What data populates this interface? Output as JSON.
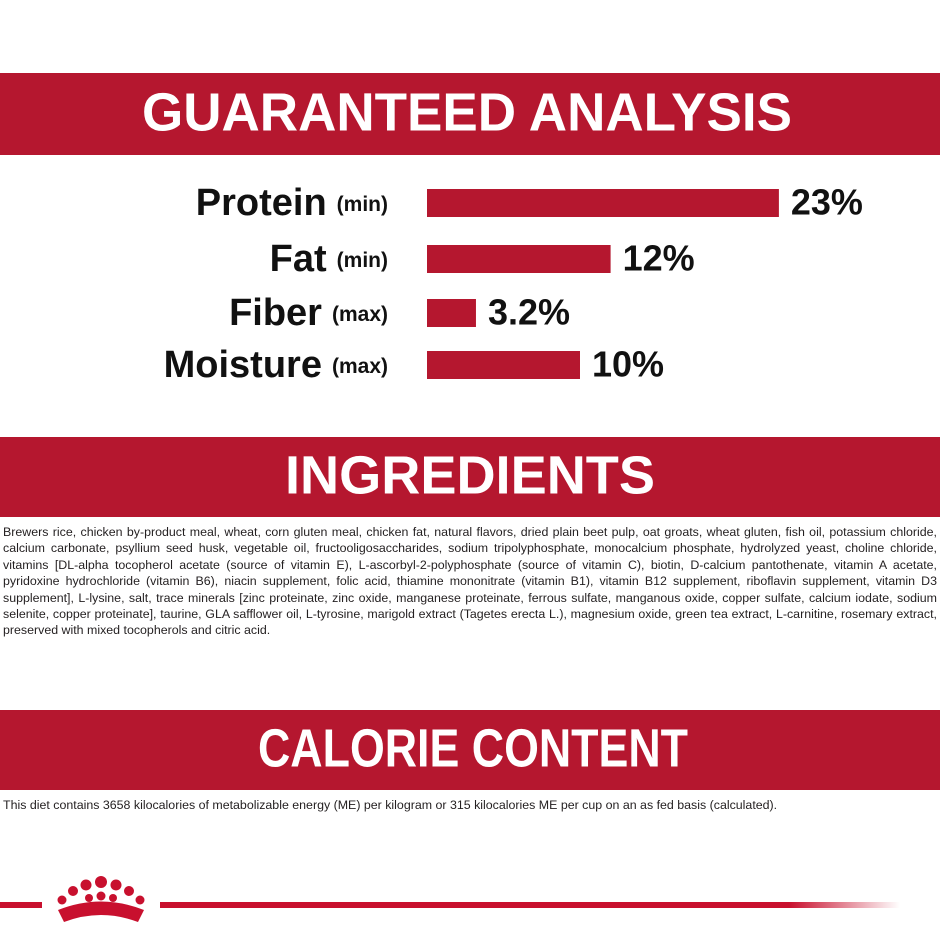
{
  "chart_data": {
    "type": "bar",
    "title": "GUARANTEED ANALYSIS",
    "categories": [
      "Protein",
      "Fat",
      "Fiber",
      "Moisture"
    ],
    "qualifiers": [
      "(min)",
      "(min)",
      "(max)",
      "(max)"
    ],
    "values": [
      23,
      12,
      3.2,
      10
    ],
    "value_labels": [
      "23%",
      "12%",
      "3.2%",
      "10%"
    ],
    "color": "#b5172f"
  },
  "ingredients": {
    "title": "INGREDIENTS",
    "text": "Brewers rice, chicken by-product meal, wheat, corn gluten meal, chicken fat, natural flavors, dried plain beet pulp, oat groats, wheat gluten, fish oil, potassium chloride, calcium carbonate, psyllium seed husk, vegetable oil, fructooligosaccharides, sodium tripolyphosphate, monocalcium phosphate, hydrolyzed yeast, choline chloride, vitamins [DL-alpha tocopherol acetate (source of vitamin E), L-ascorbyl-2-polyphosphate (source of vitamin C), biotin, D-calcium pantothenate, vitamin A acetate, pyridoxine hydrochloride (vitamin B6), niacin supplement, folic acid, thiamine mononitrate (vitamin B1), vitamin B12 supplement, riboflavin supplement, vitamin D3 supplement], L-lysine, salt, trace minerals [zinc proteinate, zinc oxide, manganese proteinate, ferrous sulfate, manganous oxide, copper sulfate, calcium iodate, sodium selenite, copper proteinate], taurine, GLA safflower oil, L-tyrosine, marigold extract (Tagetes erecta L.), magnesium oxide, green tea extract, L-carnitine, rosemary extract, preserved with mixed tocopherols and citric acid."
  },
  "calorie_content": {
    "title": "CALORIE CONTENT",
    "text": "This diet contains 3658 kilocalories of metabolizable energy (ME) per kilogram or 315 kilocalories ME per cup on an as fed basis (calculated)."
  }
}
